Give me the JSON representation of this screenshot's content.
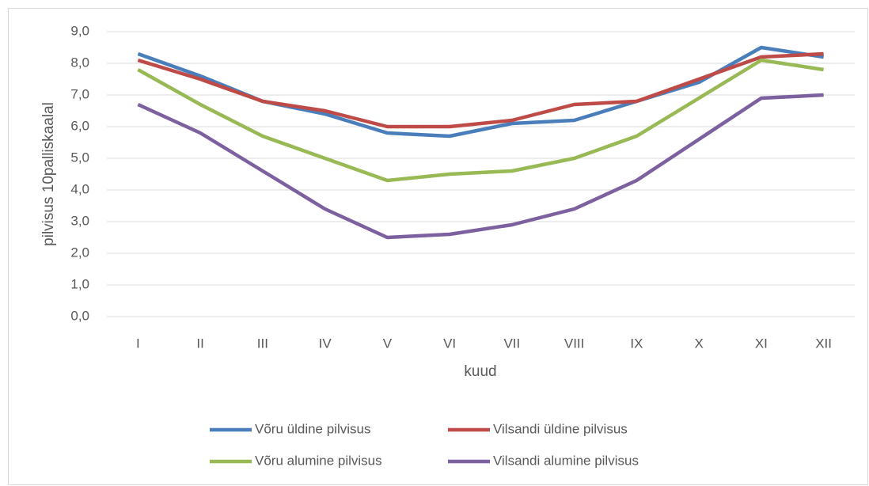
{
  "chart_data": {
    "type": "line",
    "categories": [
      "I",
      "II",
      "III",
      "IV",
      "V",
      "VI",
      "VII",
      "VIII",
      "IX",
      "X",
      "XI",
      "XII"
    ],
    "series": [
      {
        "name": "Võru üldine pilvisus",
        "color": "#4a7ebb",
        "values": [
          8.3,
          7.6,
          6.8,
          6.4,
          5.8,
          5.7,
          6.1,
          6.2,
          6.8,
          7.4,
          8.5,
          8.2
        ]
      },
      {
        "name": "Vilsandi üldine pilvisus",
        "color": "#be4b48",
        "values": [
          8.1,
          7.5,
          6.8,
          6.5,
          6.0,
          6.0,
          6.2,
          6.7,
          6.8,
          7.5,
          8.2,
          8.3
        ]
      },
      {
        "name": "Võru alumine pilvisus",
        "color": "#98b954",
        "values": [
          7.8,
          6.7,
          5.7,
          5.0,
          4.3,
          4.5,
          4.6,
          5.0,
          5.7,
          6.9,
          8.1,
          7.8
        ]
      },
      {
        "name": "Vilsandi alumine pilvisus",
        "color": "#7d60a0",
        "values": [
          6.7,
          5.8,
          4.6,
          3.4,
          2.5,
          2.6,
          2.9,
          3.4,
          4.3,
          5.6,
          6.9,
          7.0
        ]
      }
    ],
    "xlabel": "kuud",
    "ylabel": "pilvisus 10palliskaalal",
    "ylim": [
      0,
      9
    ],
    "yticks": [
      {
        "value": 0,
        "label": "0,0"
      },
      {
        "value": 1,
        "label": "1,0"
      },
      {
        "value": 2,
        "label": "2,0"
      },
      {
        "value": 3,
        "label": "3,0"
      },
      {
        "value": 4,
        "label": "4,0"
      },
      {
        "value": 5,
        "label": "5,0"
      },
      {
        "value": 6,
        "label": "6,0"
      },
      {
        "value": 7,
        "label": "7,0"
      },
      {
        "value": 8,
        "label": "8,0"
      },
      {
        "value": 9,
        "label": "9,0"
      }
    ],
    "grid": true,
    "legend": "bottom"
  }
}
